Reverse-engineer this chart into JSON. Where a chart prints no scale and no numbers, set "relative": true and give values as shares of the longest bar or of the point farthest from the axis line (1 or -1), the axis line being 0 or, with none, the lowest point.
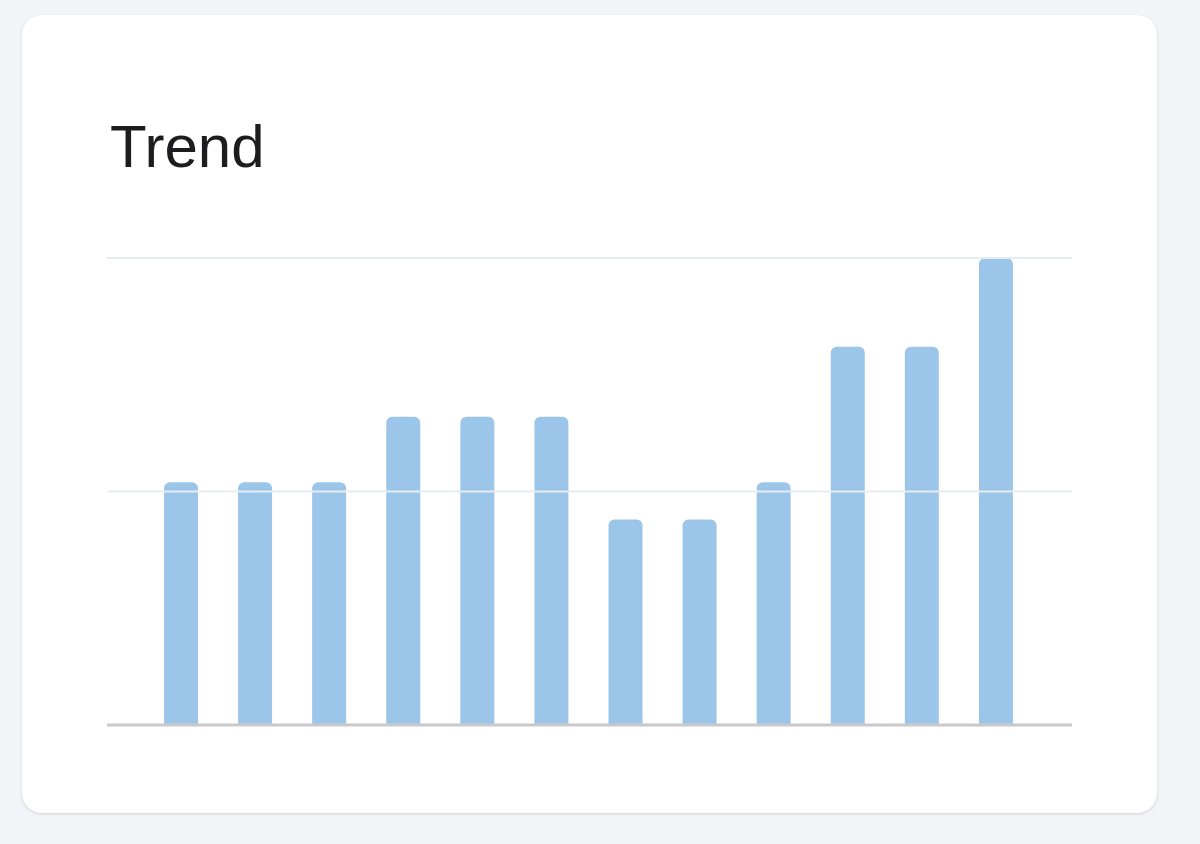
{
  "chart_data": {
    "type": "bar",
    "title": "Trend",
    "categories": [
      null,
      null,
      null,
      null,
      null,
      null,
      null,
      null,
      null,
      null,
      null,
      null
    ],
    "values": [
      0.52,
      0.52,
      0.52,
      0.66,
      0.66,
      0.66,
      0.44,
      0.44,
      0.52,
      0.81,
      0.81,
      1
    ],
    "color": "#9cc5ea",
    "relative": true,
    "ref_lines": [
      {
        "axis": "y",
        "value": 0.5,
        "color": "#e6edf1"
      },
      {
        "axis": "y",
        "value": 1,
        "color": "#e6edf1"
      }
    ]
  }
}
